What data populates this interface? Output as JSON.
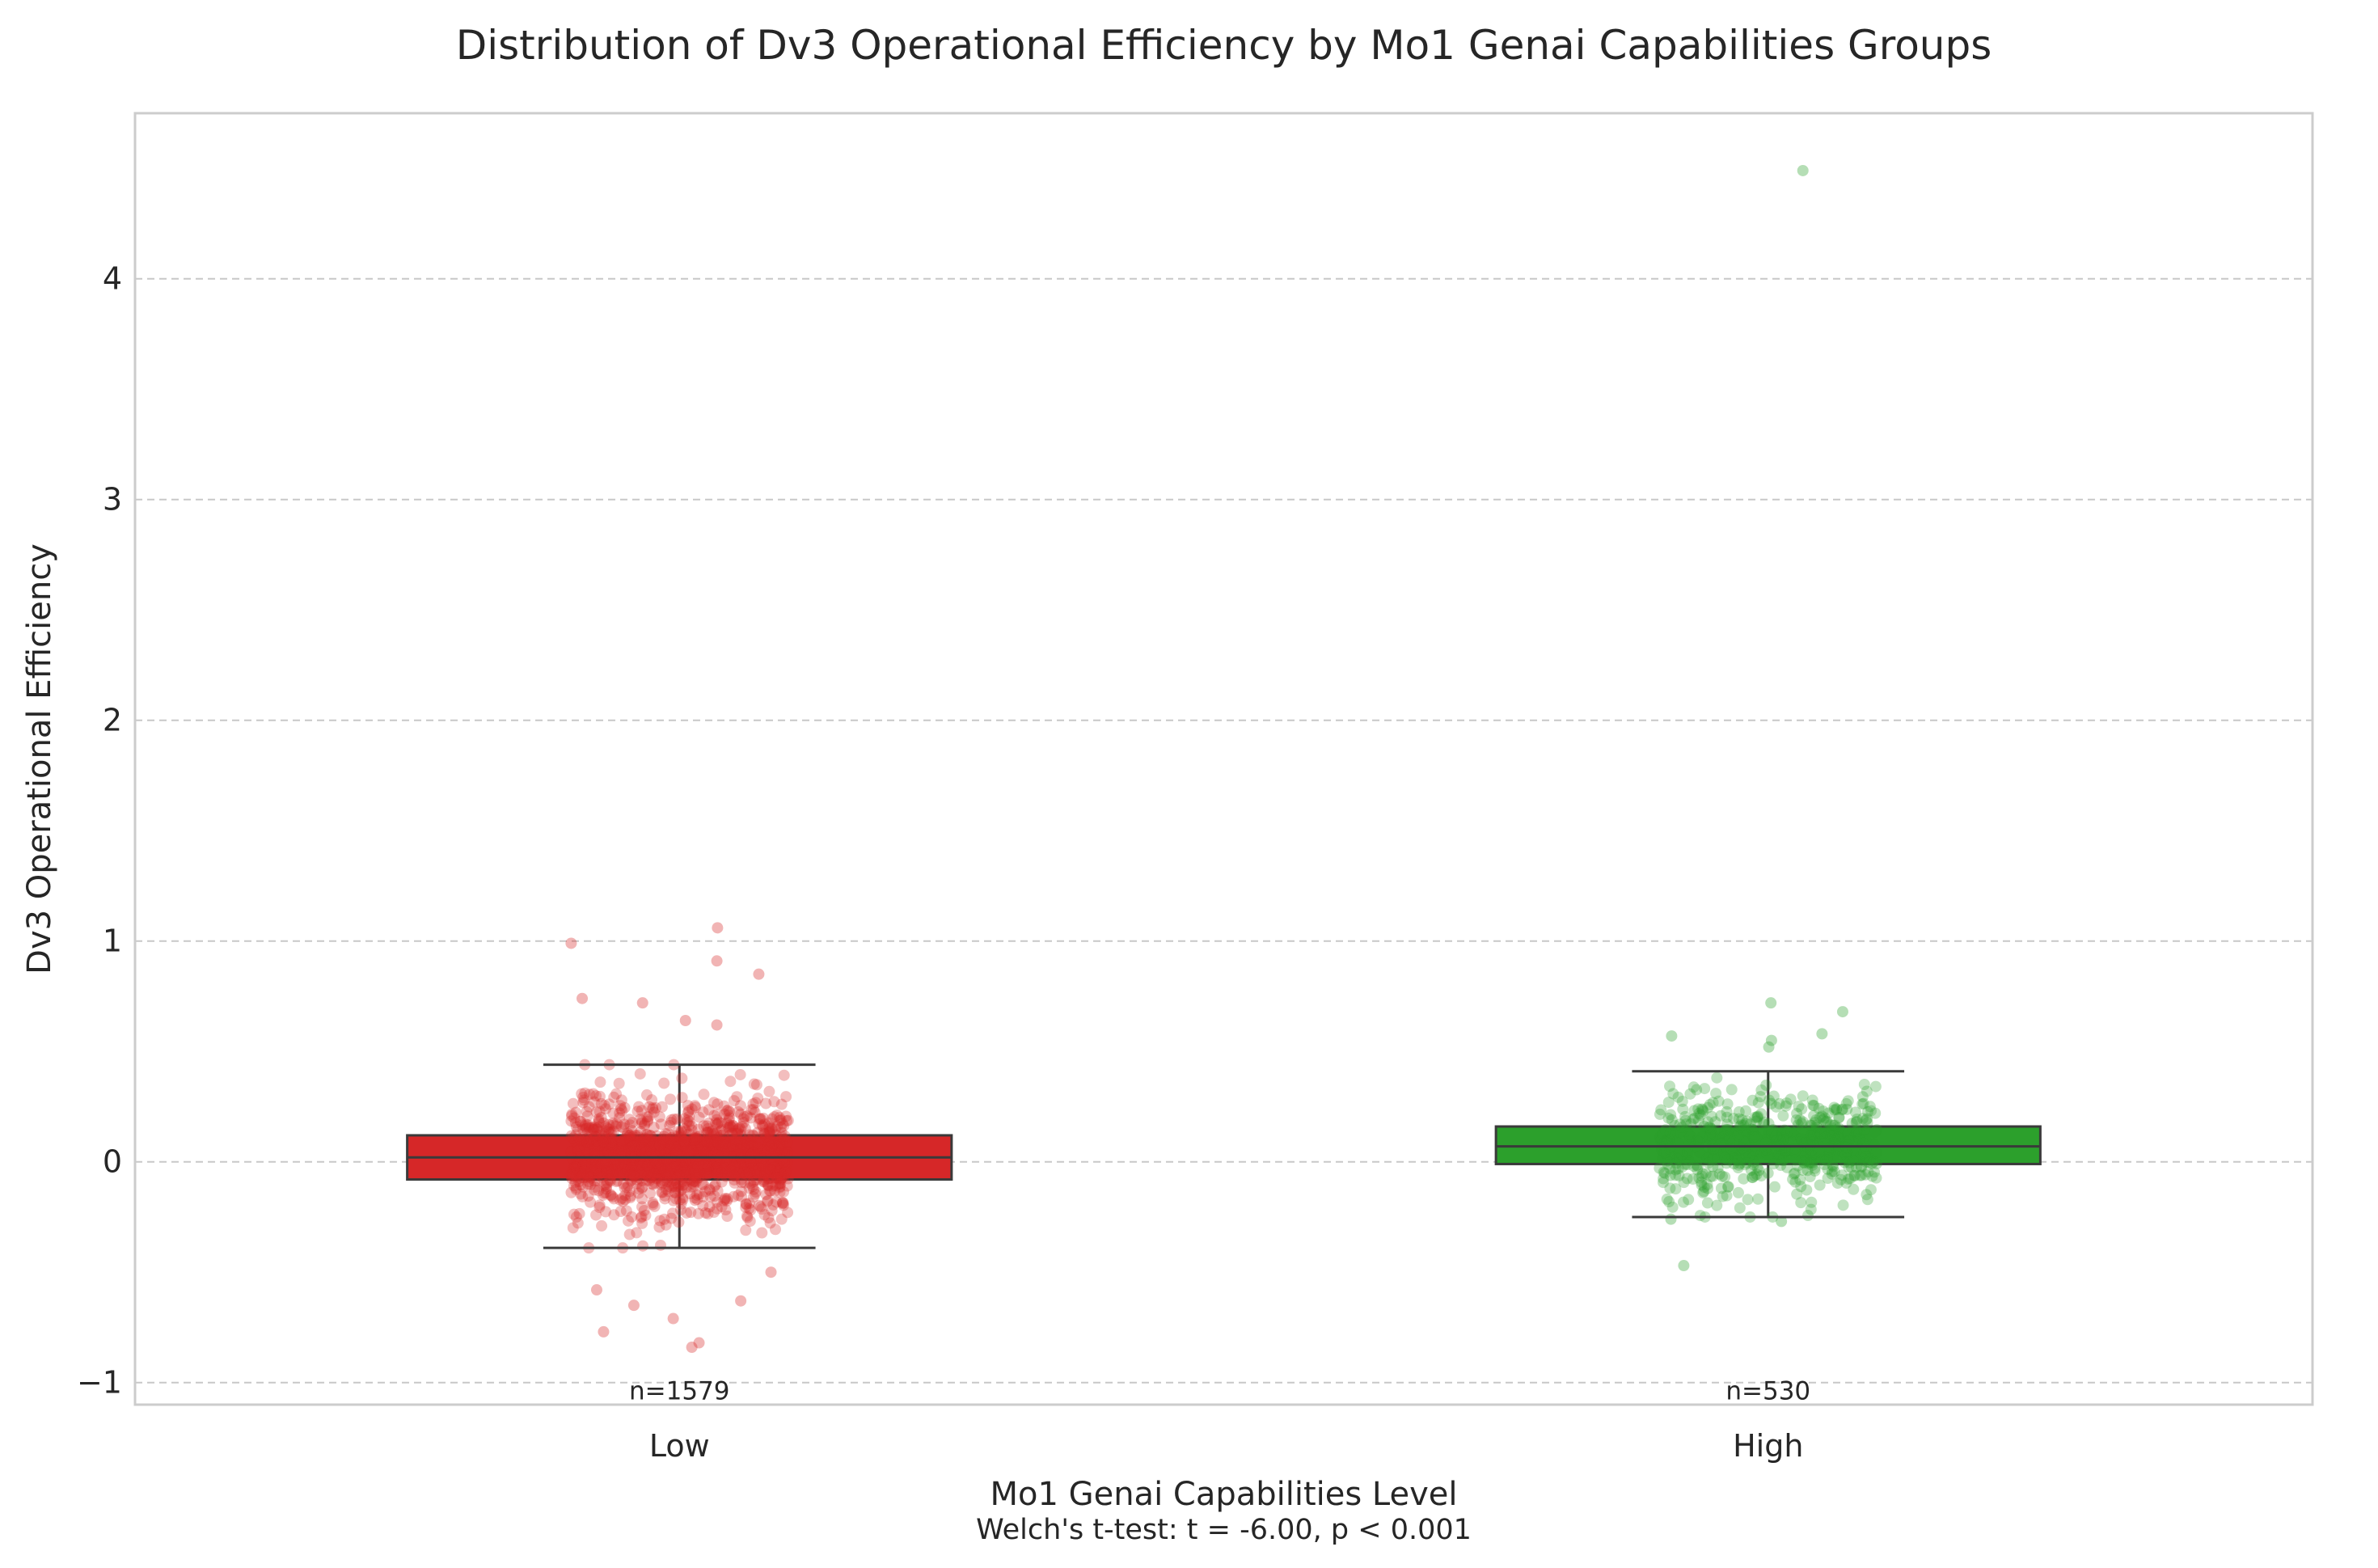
{
  "chart_data": {
    "type": "box",
    "title": "Distribution of Dv3 Operational Efficiency by Mo1 Genai Capabilities Groups",
    "xlabel": "Mo1 Genai Capabilities Level",
    "ylabel": "Dv3 Operational Efficiency",
    "ylim": [
      -1.1,
      4.75
    ],
    "y_ticks": [
      -1,
      0,
      1,
      2,
      3,
      4
    ],
    "y_tick_labels": [
      "−1",
      "0",
      "1",
      "2",
      "3",
      "4"
    ],
    "grid": "horizontal dashed",
    "categories": [
      "Low",
      "High"
    ],
    "groups": [
      {
        "name": "Low",
        "color": "#d62728",
        "n": 1579,
        "count_label": "n=1579",
        "whisker_low": -0.39,
        "q1": -0.08,
        "median": 0.02,
        "q3": 0.12,
        "whisker_high": 0.44,
        "outliers_high": [
          0.99,
          0.91,
          1.06,
          0.85,
          0.74,
          0.72,
          0.64,
          0.62
        ],
        "outliers_low": [
          -0.63,
          -0.71,
          -0.84,
          -0.82,
          -0.77,
          -0.58,
          -0.65,
          -0.5
        ]
      },
      {
        "name": "High",
        "color": "#2ca02c",
        "n": 530,
        "count_label": "n=530",
        "whisker_low": -0.25,
        "q1": -0.01,
        "median": 0.07,
        "q3": 0.16,
        "whisker_high": 0.41,
        "outliers_high": [
          4.49,
          0.72,
          0.68,
          0.58,
          0.57,
          0.55,
          0.52
        ],
        "outliers_low": [
          -0.47,
          -0.27,
          -0.26
        ]
      }
    ],
    "annotation": "Welch's t-test: t = -6.00, p < 0.001"
  }
}
